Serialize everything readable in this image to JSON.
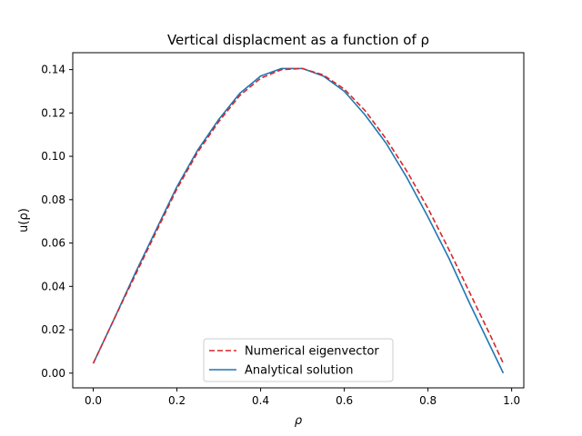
{
  "chart_data": {
    "type": "line",
    "title": "Vertical displacment as a function of ρ",
    "xlabel": "ρ",
    "ylabel": "u(ρ)",
    "xlim": [
      -0.049,
      1.029
    ],
    "ylim": [
      -0.0068,
      0.1478
    ],
    "xticks": [
      0.0,
      0.2,
      0.4,
      0.6,
      0.8,
      1.0
    ],
    "xtick_labels": [
      "0.0",
      "0.2",
      "0.4",
      "0.6",
      "0.8",
      "1.0"
    ],
    "yticks": [
      0.0,
      0.02,
      0.04,
      0.06,
      0.08,
      0.1,
      0.12,
      0.14
    ],
    "ytick_labels": [
      "0.00",
      "0.02",
      "0.04",
      "0.06",
      "0.08",
      "0.10",
      "0.12",
      "0.14"
    ],
    "grid": false,
    "legend_position": "bottom-center",
    "series": [
      {
        "name": "Numerical eigenvector",
        "style": "dashed",
        "color": "#d62728",
        "x": [
          0.0,
          0.05,
          0.1,
          0.15,
          0.2,
          0.25,
          0.3,
          0.35,
          0.4,
          0.45,
          0.5,
          0.55,
          0.6,
          0.65,
          0.7,
          0.75,
          0.8,
          0.85,
          0.9,
          0.95,
          0.98
        ],
        "y": [
          0.0045,
          0.025,
          0.045,
          0.065,
          0.085,
          0.102,
          0.116,
          0.128,
          0.136,
          0.14,
          0.1405,
          0.1375,
          0.131,
          0.121,
          0.108,
          0.093,
          0.076,
          0.057,
          0.037,
          0.017,
          0.0045
        ]
      },
      {
        "name": "Analytical solution",
        "style": "solid",
        "color": "#1f77b4",
        "x": [
          0.0,
          0.05,
          0.1,
          0.15,
          0.2,
          0.25,
          0.3,
          0.35,
          0.4,
          0.45,
          0.5,
          0.55,
          0.6,
          0.65,
          0.7,
          0.75,
          0.8,
          0.85,
          0.9,
          0.95,
          0.98
        ],
        "y": [
          0.0045,
          0.025,
          0.046,
          0.066,
          0.086,
          0.103,
          0.117,
          0.129,
          0.137,
          0.1405,
          0.1405,
          0.137,
          0.13,
          0.119,
          0.106,
          0.09,
          0.072,
          0.053,
          0.032,
          0.012,
          0.0
        ]
      }
    ]
  }
}
